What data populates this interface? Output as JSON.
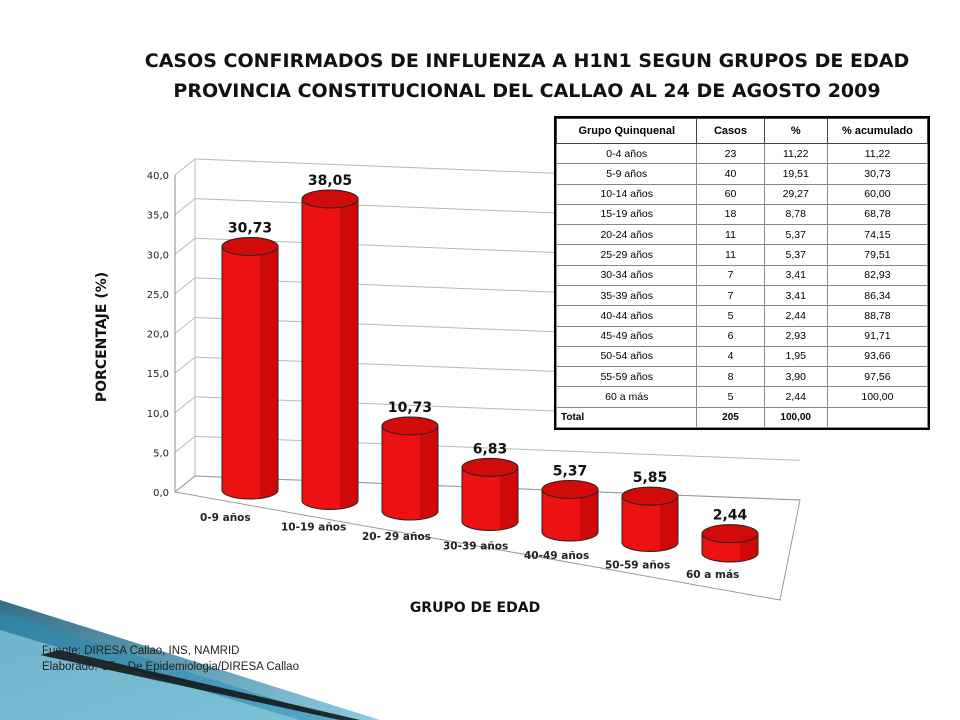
{
  "title_line1": "CASOS CONFIRMADOS DE INFLUENZA A H1N1 SEGUN GRUPOS DE EDAD",
  "title_line2": "PROVINCIA CONSTITUCIONAL DEL CALLAO AL 24 DE AGOSTO 2009",
  "colors": {
    "bar": "#ee1111",
    "bar_dark": "#a30000",
    "bar_top": "#d10a0a",
    "grid": "#b8b8b8"
  },
  "chart_data": {
    "type": "bar",
    "title": "CASOS CONFIRMADOS DE INFLUENZA A H1N1 SEGUN GRUPOS DE EDAD PROVINCIA CONSTITUCIONAL DEL CALLAO AL 24 DE AGOSTO 2009",
    "xlabel": "GRUPO DE EDAD",
    "ylabel": "PORCENTAJE (%)",
    "ylim": [
      0,
      40
    ],
    "yticks": [
      "0,0",
      "5,0",
      "10,0",
      "15,0",
      "20,0",
      "25,0",
      "30,0",
      "35,0",
      "40,0"
    ],
    "grid": true,
    "categories": [
      "0-9 años",
      "10-19 años",
      "20- 29 años",
      "30-39 años",
      "40-49 años",
      "50-59 años",
      "60 a más"
    ],
    "values": [
      30.73,
      38.05,
      10.73,
      6.83,
      5.37,
      5.85,
      2.44
    ],
    "data_labels": [
      "30,73",
      "38,05",
      "10,73",
      "6,83",
      "5,37",
      "5,85",
      "2,44"
    ]
  },
  "table": {
    "headers": [
      "Grupo Quinquenal",
      "Casos",
      "%",
      "% acumulado"
    ],
    "rows": [
      [
        "0-4 años",
        "23",
        "11,22",
        "11,22"
      ],
      [
        "5-9 años",
        "40",
        "19,51",
        "30,73"
      ],
      [
        "10-14 años",
        "60",
        "29,27",
        "60,00"
      ],
      [
        "15-19 años",
        "18",
        "8,78",
        "68,78"
      ],
      [
        "20-24 años",
        "11",
        "5,37",
        "74,15"
      ],
      [
        "25-29 años",
        "11",
        "5,37",
        "79,51"
      ],
      [
        "30-34 años",
        "7",
        "3,41",
        "82,93"
      ],
      [
        "35-39 años",
        "7",
        "3,41",
        "86,34"
      ],
      [
        "40-44 años",
        "5",
        "2,44",
        "88,78"
      ],
      [
        "45-49 años",
        "6",
        "2,93",
        "91,71"
      ],
      [
        "50-54 años",
        "4",
        "1,95",
        "93,66"
      ],
      [
        "55-59 años",
        "8",
        "3,90",
        "97,56"
      ],
      [
        "60 a más",
        "5",
        "2,44",
        "100,00"
      ]
    ],
    "total": [
      "Total",
      "205",
      "100,00",
      ""
    ]
  },
  "source_line1": "Fuente: DIRESA Callao, INS, NAMRID",
  "source_line2": "Elaborado: Ofic. De Epidemiologia/DIRESA Callao"
}
